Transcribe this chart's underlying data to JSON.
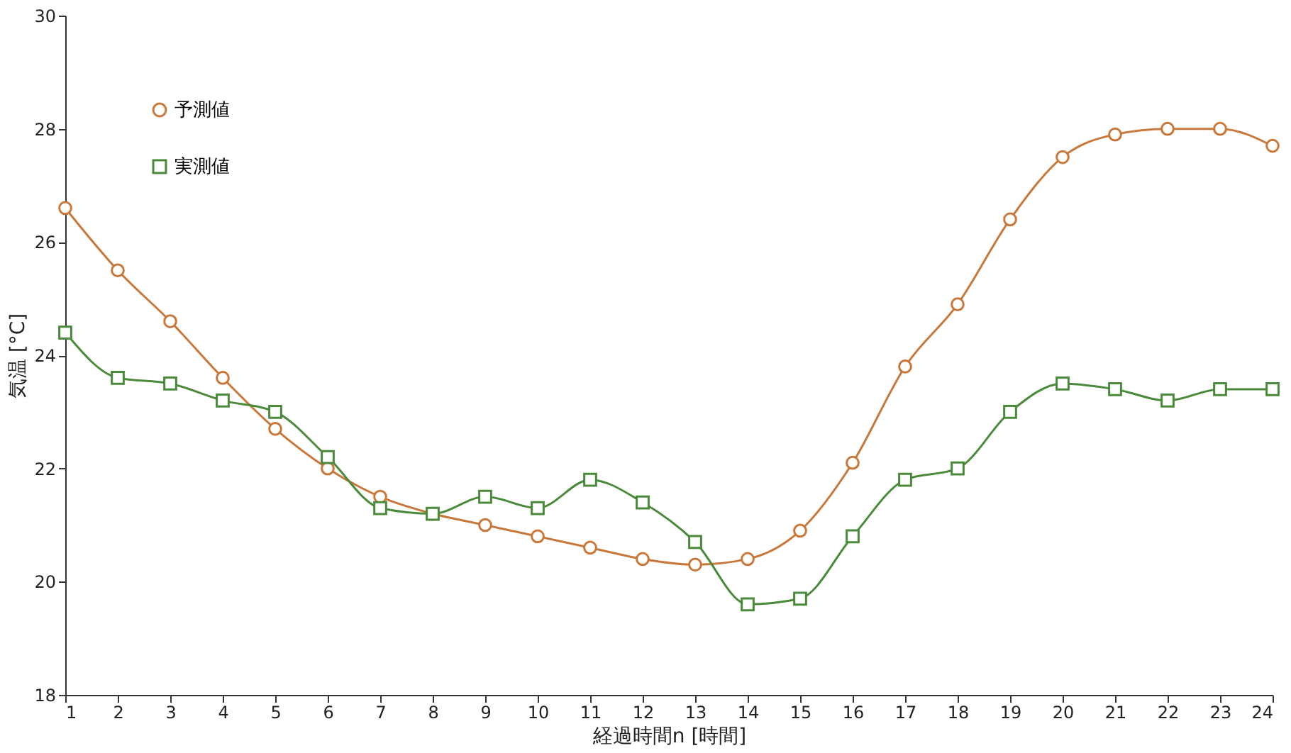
{
  "chart_data": {
    "type": "line",
    "xlabel": "経過時間n [時間]",
    "ylabel": "気温 [°C]",
    "x": [
      1,
      2,
      3,
      4,
      5,
      6,
      7,
      8,
      9,
      10,
      11,
      12,
      13,
      14,
      15,
      16,
      17,
      18,
      19,
      20,
      21,
      22,
      23,
      24
    ],
    "series": [
      {
        "name": "予測値",
        "color": "#c8783a",
        "marker": "circle",
        "values": [
          26.6,
          25.5,
          24.6,
          23.6,
          22.7,
          22.0,
          21.5,
          21.2,
          21.0,
          20.8,
          20.6,
          20.4,
          20.3,
          20.4,
          20.9,
          22.1,
          23.8,
          24.9,
          26.4,
          27.5,
          27.9,
          28.0,
          28.0,
          27.7
        ]
      },
      {
        "name": "実測値",
        "color": "#4a8a3a",
        "marker": "square",
        "values": [
          24.4,
          23.6,
          23.5,
          23.2,
          23.0,
          22.2,
          21.3,
          21.2,
          21.5,
          21.3,
          21.8,
          21.4,
          20.7,
          19.6,
          19.7,
          20.8,
          21.8,
          22.0,
          23.0,
          23.5,
          23.4,
          23.2,
          23.4,
          23.4
        ]
      }
    ],
    "xlim": [
      1,
      24
    ],
    "xticks": [
      1,
      2,
      3,
      4,
      5,
      6,
      7,
      8,
      9,
      10,
      11,
      12,
      13,
      14,
      15,
      16,
      17,
      18,
      19,
      20,
      21,
      22,
      23,
      24
    ],
    "ylim": [
      18,
      30
    ],
    "yticks": [
      18,
      20,
      22,
      24,
      26,
      28,
      30
    ],
    "grid": false,
    "legend": "top left",
    "line_style": "solid"
  }
}
